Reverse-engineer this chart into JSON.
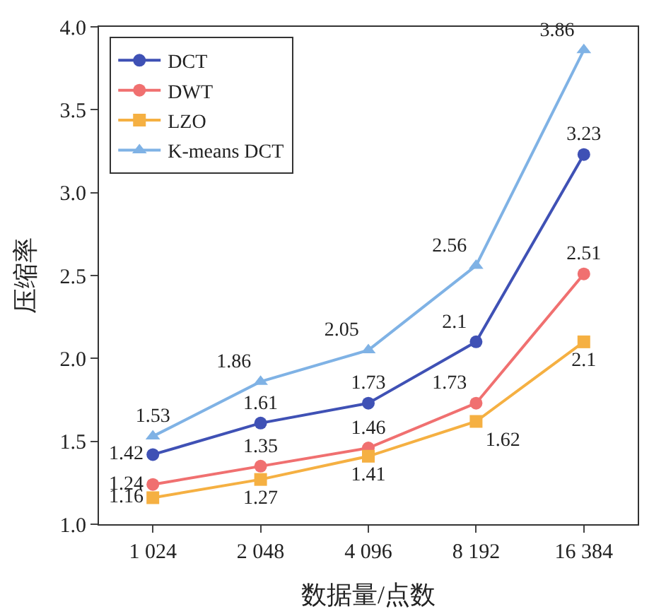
{
  "chart_data": {
    "type": "line",
    "xlabel": "数据量/点数",
    "ylabel": "压缩率",
    "categories": [
      "1 024",
      "2 048",
      "4 096",
      "8 192",
      "16 384"
    ],
    "series": [
      {
        "name": "DCT",
        "color": "#3f51b5",
        "marker": "circle",
        "values": [
          1.42,
          1.61,
          1.73,
          2.1,
          3.23
        ]
      },
      {
        "name": "DWT",
        "color": "#f07070",
        "marker": "circle",
        "values": [
          1.24,
          1.35,
          1.46,
          1.73,
          2.51
        ]
      },
      {
        "name": "LZO",
        "color": "#f5b042",
        "marker": "square",
        "values": [
          1.16,
          1.27,
          1.41,
          1.62,
          2.1
        ]
      },
      {
        "name": "K-means DCT",
        "color": "#7fb2e5",
        "marker": "triangle",
        "values": [
          1.53,
          1.86,
          2.05,
          2.56,
          3.86
        ]
      }
    ],
    "ylim": [
      1,
      4
    ],
    "yticks": [
      {
        "value": 1,
        "label": "1.0"
      },
      {
        "value": 1.5,
        "label": "1.5"
      },
      {
        "value": 2,
        "label": "2.0"
      },
      {
        "value": 2.5,
        "label": "2.5"
      },
      {
        "value": 3,
        "label": "3.0"
      },
      {
        "value": 3.5,
        "label": "3.5"
      },
      {
        "value": 4,
        "label": "4.0"
      }
    ],
    "grid": false,
    "legend": "top left",
    "data_labels": true,
    "line_style": "solid"
  }
}
